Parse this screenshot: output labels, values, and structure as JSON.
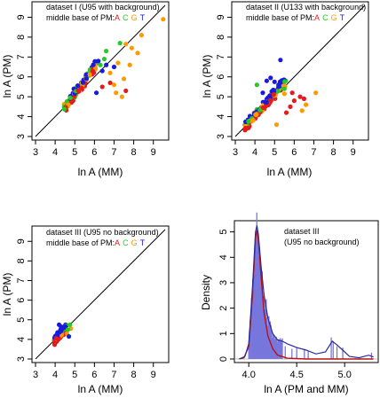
{
  "colors": {
    "A": "#e41a1c",
    "C": "#22cc22",
    "G": "#ff9900",
    "T": "#1a1adc",
    "hist_bar": "#7777dd",
    "density_fit": "#bb1111",
    "density_est": "#2b2b9a",
    "axis": "#000000"
  },
  "chart_data": [
    {
      "type": "scatter",
      "legend_line1": "dataset I (U95 with background)",
      "legend_line2_prefix": "middle base of PM:",
      "legend_bases": [
        "A",
        "C",
        "G",
        "T"
      ],
      "xlabel": "ln A (MM)",
      "ylabel": "ln A (PM)",
      "xlim": [
        3,
        9.6
      ],
      "ylim": [
        3,
        9.6
      ],
      "xticks": [
        3,
        4,
        5,
        6,
        7,
        8,
        9
      ],
      "yticks": [
        3,
        4,
        5,
        6,
        7,
        8,
        9
      ],
      "diagonal": true,
      "cloud": {
        "x_range": [
          4.45,
          6.1
        ],
        "y_spread": 0.55,
        "lift": 0.55
      },
      "points": [
        {
          "x": 9.5,
          "y": 8.9,
          "base": "G"
        },
        {
          "x": 8.4,
          "y": 8.1,
          "base": "G"
        },
        {
          "x": 8.2,
          "y": 7.2,
          "base": "G"
        },
        {
          "x": 7.9,
          "y": 7.45,
          "base": "G"
        },
        {
          "x": 7.6,
          "y": 7.65,
          "base": "G"
        },
        {
          "x": 7.8,
          "y": 6.6,
          "base": "G"
        },
        {
          "x": 7.2,
          "y": 6.7,
          "base": "G"
        },
        {
          "x": 7.5,
          "y": 5.9,
          "base": "G"
        },
        {
          "x": 7.0,
          "y": 5.6,
          "base": "G"
        },
        {
          "x": 6.8,
          "y": 6.2,
          "base": "G"
        },
        {
          "x": 7.1,
          "y": 5.2,
          "base": "G"
        },
        {
          "x": 7.4,
          "y": 5.0,
          "base": "G"
        },
        {
          "x": 7.3,
          "y": 7.7,
          "base": "C"
        },
        {
          "x": 6.6,
          "y": 7.3,
          "base": "C"
        },
        {
          "x": 6.5,
          "y": 6.9,
          "base": "C"
        },
        {
          "x": 6.3,
          "y": 6.6,
          "base": "C"
        },
        {
          "x": 7.6,
          "y": 5.3,
          "base": "A"
        },
        {
          "x": 6.8,
          "y": 5.7,
          "base": "A"
        },
        {
          "x": 6.4,
          "y": 5.5,
          "base": "A"
        },
        {
          "x": 7.0,
          "y": 6.5,
          "base": "T"
        },
        {
          "x": 6.6,
          "y": 6.6,
          "base": "T"
        },
        {
          "x": 6.4,
          "y": 6.3,
          "base": "T"
        },
        {
          "x": 6.2,
          "y": 6.8,
          "base": "T"
        },
        {
          "x": 6.1,
          "y": 5.2,
          "base": "T"
        }
      ]
    },
    {
      "type": "scatter",
      "legend_line1": "dataset II (U133 with background)",
      "legend_line2_prefix": "middle base of PM:",
      "legend_bases": [
        "A",
        "C",
        "G",
        "T"
      ],
      "xlabel": "ln A (MM)",
      "ylabel": "ln A (PM)",
      "xlim": [
        3,
        9.6
      ],
      "ylim": [
        3,
        9.6
      ],
      "xticks": [
        3,
        4,
        5,
        6,
        7,
        8,
        9
      ],
      "yticks": [
        3,
        4,
        5,
        6,
        7,
        8,
        9
      ],
      "diagonal": true,
      "cloud": {
        "x_range": [
          3.45,
          5.6
        ],
        "y_spread": 0.5,
        "lift": 0.25
      },
      "points": [
        {
          "x": 5.3,
          "y": 6.85,
          "base": "T"
        },
        {
          "x": 5.0,
          "y": 5.75,
          "base": "T"
        },
        {
          "x": 4.8,
          "y": 5.95,
          "base": "T"
        },
        {
          "x": 4.6,
          "y": 5.8,
          "base": "T"
        },
        {
          "x": 5.2,
          "y": 5.5,
          "base": "T"
        },
        {
          "x": 4.4,
          "y": 5.2,
          "base": "T"
        },
        {
          "x": 4.1,
          "y": 5.6,
          "base": "C"
        },
        {
          "x": 5.5,
          "y": 5.4,
          "base": "C"
        },
        {
          "x": 7.1,
          "y": 5.2,
          "base": "G"
        },
        {
          "x": 6.6,
          "y": 4.6,
          "base": "G"
        },
        {
          "x": 6.4,
          "y": 4.3,
          "base": "G"
        },
        {
          "x": 5.5,
          "y": 5.15,
          "base": "G"
        },
        {
          "x": 5.1,
          "y": 3.6,
          "base": "G"
        },
        {
          "x": 6.3,
          "y": 5.0,
          "base": "A"
        },
        {
          "x": 6.0,
          "y": 4.8,
          "base": "A"
        },
        {
          "x": 5.8,
          "y": 4.5,
          "base": "A"
        },
        {
          "x": 6.5,
          "y": 4.9,
          "base": "A"
        },
        {
          "x": 5.6,
          "y": 4.2,
          "base": "A"
        },
        {
          "x": 5.9,
          "y": 5.2,
          "base": "A"
        }
      ]
    },
    {
      "type": "scatter",
      "legend_line1": "dataset III (U95 no background)",
      "legend_line2_prefix": "middle base of PM:",
      "legend_bases": [
        "A",
        "C",
        "G",
        "T"
      ],
      "xlabel": "ln A (MM)",
      "ylabel": "ln A (PM)",
      "xlim": [
        3,
        9.6
      ],
      "ylim": [
        3,
        9.6
      ],
      "xticks": [
        3,
        4,
        5,
        6,
        7,
        8,
        9
      ],
      "yticks": [
        3,
        4,
        5,
        6,
        7,
        8,
        9
      ],
      "diagonal": true,
      "cloud": {
        "x_range": [
          3.95,
          4.55
        ],
        "y_spread": 0.22,
        "lift": 0.05
      },
      "points": [
        {
          "x": 4.8,
          "y": 4.55,
          "base": "G"
        },
        {
          "x": 4.6,
          "y": 4.3,
          "base": "G"
        },
        {
          "x": 4.75,
          "y": 4.75,
          "base": "C"
        },
        {
          "x": 4.65,
          "y": 4.5,
          "base": "C"
        },
        {
          "x": 4.2,
          "y": 4.75,
          "base": "T"
        },
        {
          "x": 4.3,
          "y": 4.65,
          "base": "T"
        },
        {
          "x": 4.7,
          "y": 4.15,
          "base": "T"
        },
        {
          "x": 4.05,
          "y": 4.05,
          "base": "A"
        }
      ]
    },
    {
      "type": "area",
      "legend_line1": "dataset III",
      "legend_line2": "(U95 no background)",
      "xlabel": "ln A (PM and MM)",
      "ylabel": "Density",
      "xlim": [
        3.85,
        5.35
      ],
      "ylim": [
        0,
        5.3
      ],
      "xticks": [
        4.0,
        4.5,
        5.0
      ],
      "xtick_labels": [
        "4.0",
        "4.5",
        "5.0"
      ],
      "yticks": [
        0,
        1,
        2,
        3,
        4,
        5
      ],
      "hist_x_range": [
        4.0,
        4.35
      ],
      "sparse_bars": [
        {
          "x": 4.38,
          "h": 0.5
        },
        {
          "x": 4.45,
          "h": 0.4
        },
        {
          "x": 4.5,
          "h": 0.45
        },
        {
          "x": 4.58,
          "h": 0.4
        },
        {
          "x": 4.62,
          "h": 0.3
        },
        {
          "x": 4.86,
          "h": 0.85
        },
        {
          "x": 4.88,
          "h": 0.7
        },
        {
          "x": 4.92,
          "h": 0.5
        },
        {
          "x": 4.98,
          "h": 0.45
        },
        {
          "x": 5.28,
          "h": 0.25
        }
      ],
      "fit_curve": [
        [
          3.9,
          0
        ],
        [
          3.95,
          0.05
        ],
        [
          4.0,
          0.5
        ],
        [
          4.04,
          2.6
        ],
        [
          4.07,
          4.8
        ],
        [
          4.085,
          5.05
        ],
        [
          4.1,
          4.7
        ],
        [
          4.13,
          3.2
        ],
        [
          4.16,
          1.8
        ],
        [
          4.2,
          0.9
        ],
        [
          4.25,
          0.4
        ],
        [
          4.3,
          0.15
        ],
        [
          4.4,
          0.03
        ],
        [
          4.6,
          0
        ],
        [
          5.3,
          0
        ]
      ],
      "density_curve": [
        [
          3.9,
          0
        ],
        [
          3.96,
          0.1
        ],
        [
          4.0,
          0.6
        ],
        [
          4.04,
          2.9
        ],
        [
          4.07,
          5.0
        ],
        [
          4.085,
          5.25
        ],
        [
          4.1,
          4.9
        ],
        [
          4.13,
          3.6
        ],
        [
          4.16,
          2.5
        ],
        [
          4.2,
          1.6
        ],
        [
          4.25,
          1.0
        ],
        [
          4.3,
          0.75
        ],
        [
          4.35,
          0.7
        ],
        [
          4.4,
          0.6
        ],
        [
          4.5,
          0.45
        ],
        [
          4.6,
          0.35
        ],
        [
          4.7,
          0.2
        ],
        [
          4.8,
          0.28
        ],
        [
          4.87,
          0.7
        ],
        [
          4.92,
          0.55
        ],
        [
          4.98,
          0.35
        ],
        [
          5.05,
          0.1
        ],
        [
          5.15,
          0.05
        ],
        [
          5.25,
          0.15
        ],
        [
          5.3,
          0.08
        ]
      ]
    }
  ]
}
